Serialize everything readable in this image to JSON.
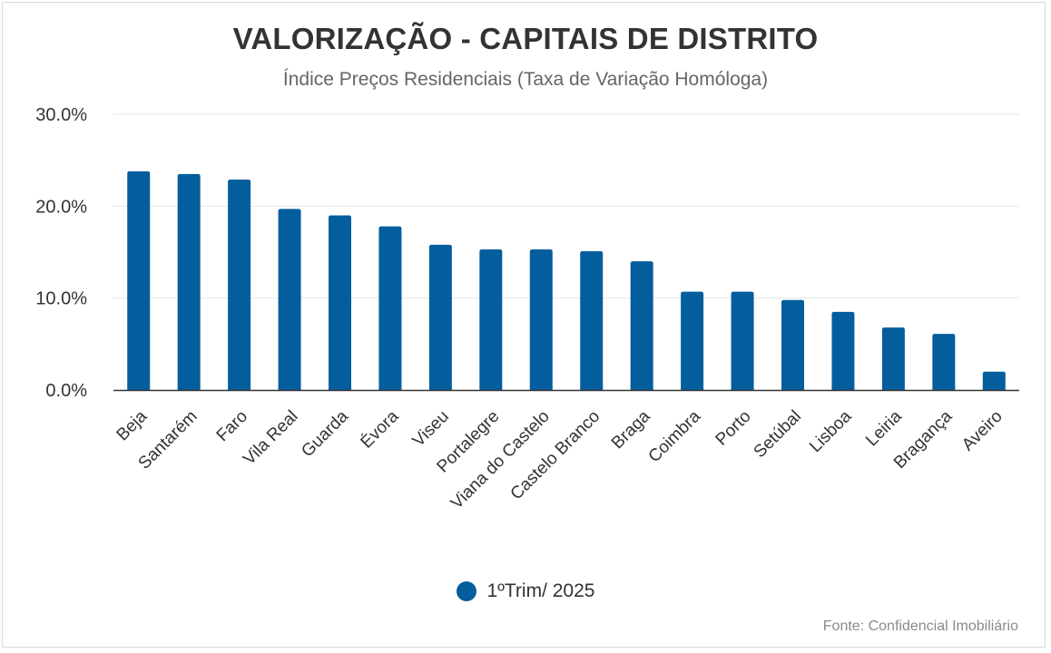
{
  "colors": {
    "bar": "#045E9E",
    "grid": "#e6e6e6",
    "axis": "#333333",
    "tick_text": "#333333"
  },
  "chart_data": {
    "type": "bar",
    "title": "VALORIZAÇÃO - CAPITAIS DE DISTRITO",
    "subtitle": "Índice Preços Residenciais (Taxa de Variação Homóloga)",
    "categories": [
      "Beja",
      "Santarém",
      "Faro",
      "Vila Real",
      "Guarda",
      "Évora",
      "Viseu",
      "Portalegre",
      "Viana do Castelo",
      "Castelo Branco",
      "Braga",
      "Coimbra",
      "Porto",
      "Setúbal",
      "Lisboa",
      "Leiria",
      "Bragança",
      "Aveiro"
    ],
    "series": [
      {
        "name": "1ºTrim/ 2025",
        "values": [
          23.8,
          23.5,
          22.9,
          19.7,
          19.0,
          17.8,
          15.8,
          15.3,
          15.3,
          15.1,
          14.0,
          10.7,
          10.7,
          9.8,
          8.5,
          6.8,
          6.1,
          2.0
        ]
      }
    ],
    "ylim": [
      0,
      30
    ],
    "yticks": [
      "0.0%",
      "10.0%",
      "20.0%",
      "30.0%"
    ],
    "ytick_values": [
      0,
      10,
      20,
      30
    ],
    "grid": true,
    "legend": "bottom",
    "source": "Fonte: Confidencial Imobiliário"
  }
}
